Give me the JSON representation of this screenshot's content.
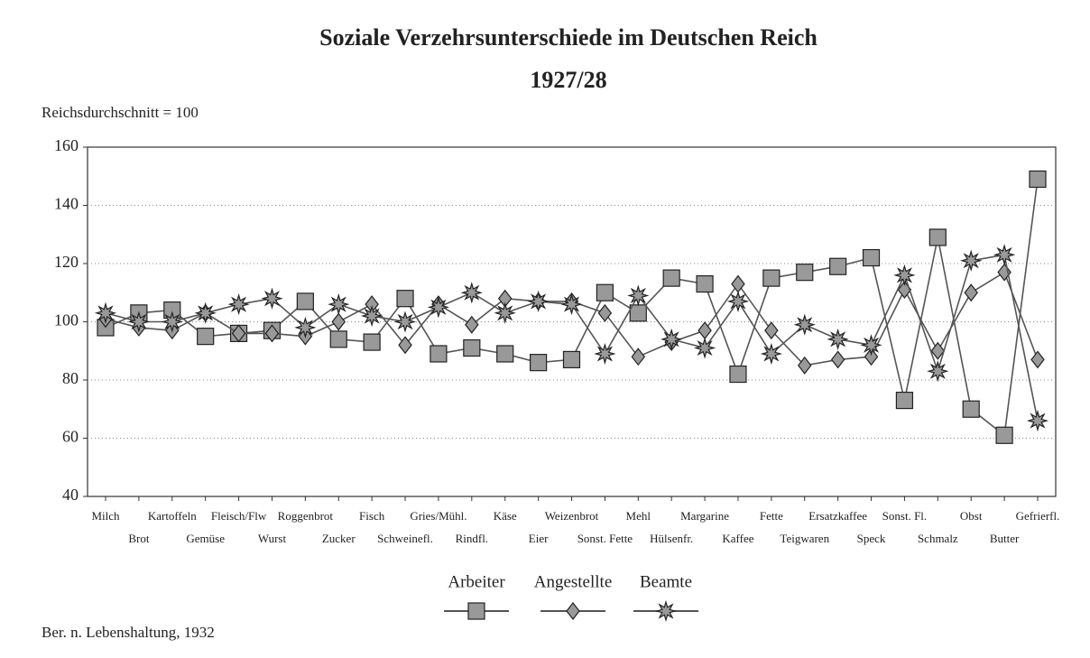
{
  "chart_data": {
    "type": "line",
    "title": "Soziale Verzehrsunterschiede im Deutschen Reich",
    "subtitle": "1927/28",
    "y_label": "Reichsdurchschnitt = 100",
    "source": "Ber. n. Lebenshaltung, 1932",
    "categories": [
      "Milch",
      "Brot",
      "Kartoffeln",
      "Gemüse",
      "Fleisch/Flw",
      "Wurst",
      "Roggenbrot",
      "Zucker",
      "Fisch",
      "Schweinefl.",
      "Gries/Mühl.",
      "Rindfl.",
      "Käse",
      "Eier",
      "Weizenbrot",
      "Sonst. Fette",
      "Mehl",
      "Hülsenfr.",
      "Margarine",
      "Kaffee",
      "Fette",
      "Teigwaren",
      "Ersatzkaffee",
      "Speck",
      "Sonst. Fl.",
      "Schmalz",
      "Obst",
      "Butter",
      "Gefrierfl."
    ],
    "series": [
      {
        "name": "Arbeiter",
        "color": "#555555",
        "marker": "square",
        "values": [
          98,
          103,
          104,
          95,
          96,
          97,
          107,
          94,
          93,
          108,
          89,
          91,
          89,
          86,
          87,
          110,
          103,
          115,
          113,
          82,
          115,
          117,
          119,
          122,
          73,
          129,
          70,
          61,
          149
        ]
      },
      {
        "name": "Angestellte",
        "color": "#555555",
        "marker": "diamond",
        "values": [
          101,
          98,
          97,
          103,
          96,
          96,
          95,
          100,
          106,
          92,
          106,
          99,
          108,
          107,
          107,
          103,
          88,
          93,
          97,
          113,
          97,
          85,
          87,
          88,
          111,
          90,
          110,
          117,
          87
        ]
      },
      {
        "name": "Beamte",
        "color": "#555555",
        "marker": "star",
        "values": [
          103,
          100,
          100,
          103,
          106,
          108,
          98,
          106,
          102,
          100,
          105,
          110,
          103,
          107,
          106,
          89,
          109,
          94,
          91,
          107,
          89,
          99,
          94,
          92,
          116,
          83,
          121,
          123,
          66
        ]
      }
    ],
    "ylim": [
      40,
      160
    ],
    "yticks": [
      40,
      60,
      80,
      100,
      120,
      140,
      160
    ],
    "grid": true,
    "legend": "bottom"
  }
}
